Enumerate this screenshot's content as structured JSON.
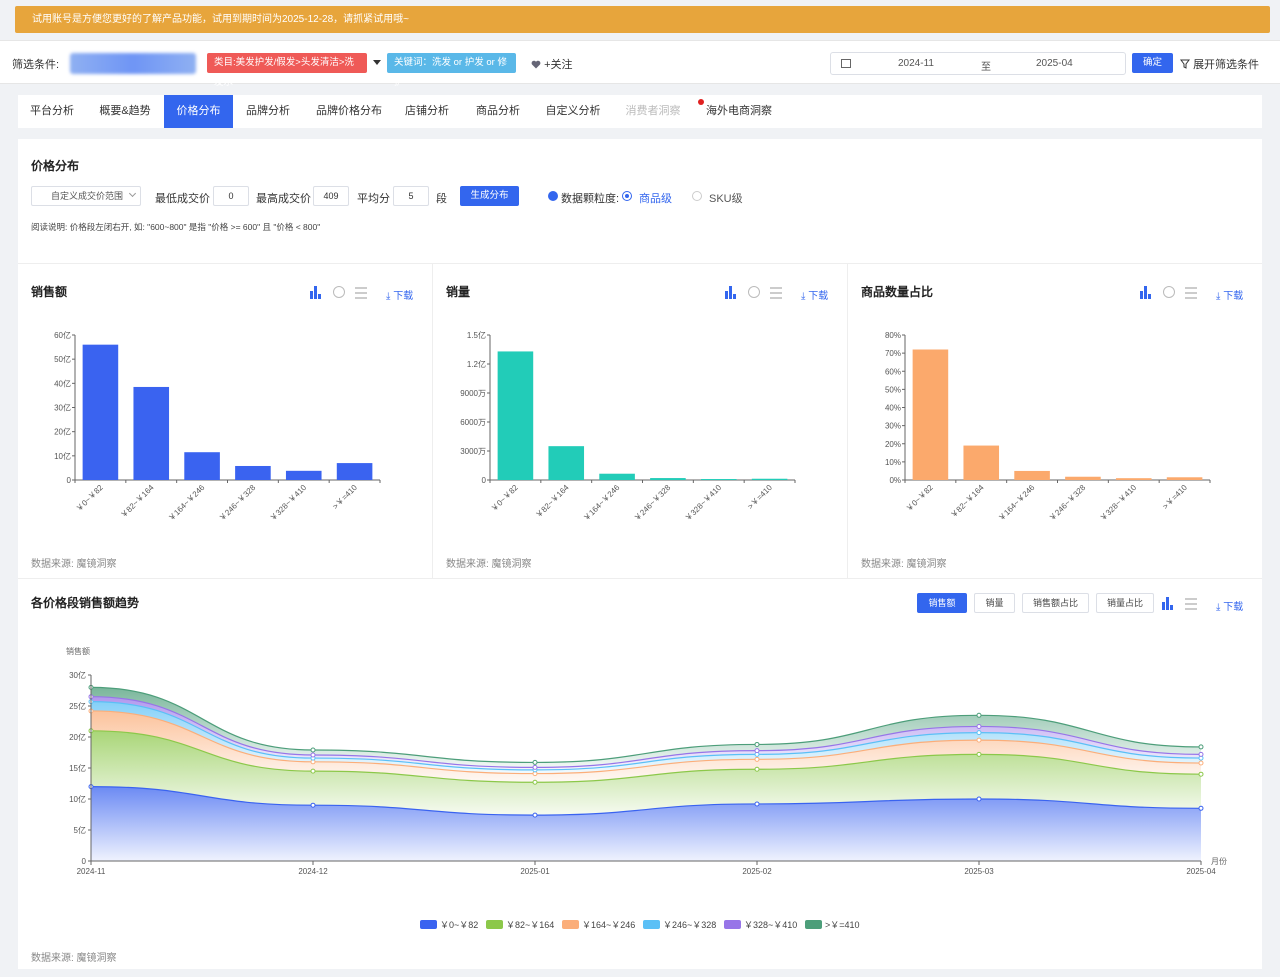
{
  "banner": {
    "text": "试用账号是方便您更好的了解产品功能，试用到期时间为2025-12-28，请抓紧试用哦~"
  },
  "filter": {
    "label": "筛选条件:",
    "category_tag": "类目:美发护发/假发>头发清洁>洗发水",
    "keyword_tag": "关键词：洗发 or 护发 or 修护",
    "follow_label": "+关注",
    "date_start": "2024-11",
    "date_to": "至",
    "date_end": "2025-04",
    "confirm_label": "确定",
    "expand_label": "展开筛选条件"
  },
  "tabs": [
    {
      "label": "平台分析",
      "state": "normal"
    },
    {
      "label": "概要&趋势",
      "state": "normal"
    },
    {
      "label": "价格分布",
      "state": "active"
    },
    {
      "label": "品牌分析",
      "state": "normal"
    },
    {
      "label": "品牌价格分布",
      "state": "normal"
    },
    {
      "label": "店铺分析",
      "state": "normal"
    },
    {
      "label": "商品分析",
      "state": "normal"
    },
    {
      "label": "自定义分析",
      "state": "normal"
    },
    {
      "label": "消费者洞察",
      "state": "disabled"
    },
    {
      "label": "海外电商洞察",
      "state": "normal"
    }
  ],
  "price_dist": {
    "title": "价格分布",
    "range_select": "自定义成交价范围",
    "min_label": "最低成交价",
    "min_value": "0",
    "max_label": "最高成交价",
    "max_value": "409",
    "split_label": "平均分",
    "split_value": "5",
    "split_unit": "段",
    "generate_label": "生成分布",
    "granularity_label": "数据颗粒度:",
    "option_product": "商品级",
    "option_sku": "SKU级",
    "note": "阅读说明: 价格段左闭右开, 如: \"600~800\" 是指 \"价格 >= 600\" 且 \"价格 < 800\""
  },
  "common": {
    "download_label": "下载",
    "source_label": "数据来源: 魔镜洞察"
  },
  "colors": {
    "primary": "#3366ee",
    "banner": "#e7a53c",
    "tag_red": "#ef5a57",
    "tag_blue": "#5ab8e8"
  },
  "chart_data": [
    {
      "type": "bar",
      "title": "销售额",
      "categories": [
        "￥0~￥82",
        "￥82~￥164",
        "￥164~￥246",
        "￥246~￥328",
        "￥328~￥410",
        ">￥=410"
      ],
      "values": [
        56,
        38.5,
        11.5,
        5.8,
        3.8,
        7
      ],
      "ylim": [
        0,
        60
      ],
      "yticks": [
        "0",
        "10亿",
        "20亿",
        "30亿",
        "40亿",
        "50亿",
        "60亿"
      ],
      "color": "#3a63f0"
    },
    {
      "type": "bar",
      "title": "销量",
      "categories": [
        "￥0~￥82",
        "￥82~￥164",
        "￥164~￥246",
        "￥246~￥328",
        "￥328~￥410",
        ">￥=410"
      ],
      "values": [
        13300,
        3500,
        650,
        200,
        100,
        130
      ],
      "ylim": [
        0,
        15000
      ],
      "yticks": [
        "0",
        "3000万",
        "6000万",
        "9000万",
        "1.2亿",
        "1.5亿"
      ],
      "color": "#22ccb8"
    },
    {
      "type": "bar",
      "title": "商品数量占比",
      "categories": [
        "￥0~￥82",
        "￥82~￥164",
        "￥164~￥246",
        "￥246~￥328",
        "￥328~￥410",
        ">￥=410"
      ],
      "values": [
        72,
        19,
        5,
        1.8,
        1,
        1.5
      ],
      "ylim": [
        0,
        80
      ],
      "yticks": [
        "0%",
        "10%",
        "20%",
        "30%",
        "40%",
        "50%",
        "60%",
        "70%",
        "80%"
      ],
      "color": "#fba96c"
    },
    {
      "type": "area",
      "title": "各价格段销售额趋势",
      "ylabel": "销售额",
      "xlabel": "月份",
      "x": [
        "2024-11",
        "2024-12",
        "2025-01",
        "2025-02",
        "2025-03",
        "2025-04"
      ],
      "ylim": [
        0,
        30
      ],
      "yticks": [
        "0",
        "5亿",
        "10亿",
        "15亿",
        "20亿",
        "25亿",
        "30亿"
      ],
      "stacked": true,
      "series": [
        {
          "name": "￥0~￥82",
          "values": [
            12,
            9,
            7.4,
            9.2,
            10,
            8.5
          ],
          "color": "#3a63f0"
        },
        {
          "name": "￥82~￥164",
          "values": [
            9,
            5.5,
            5.3,
            5.6,
            7.2,
            5.5
          ],
          "color": "#8cc84a"
        },
        {
          "name": "￥164~￥246",
          "values": [
            3.2,
            1.5,
            1.4,
            1.6,
            2.3,
            1.8
          ],
          "color": "#fbae7a"
        },
        {
          "name": "￥246~￥328",
          "values": [
            1.5,
            0.6,
            0.6,
            0.8,
            1.2,
            0.8
          ],
          "color": "#5bc0f6"
        },
        {
          "name": "￥328~￥410",
          "values": [
            0.8,
            0.5,
            0.4,
            0.6,
            1.0,
            0.6
          ],
          "color": "#9775e8"
        },
        {
          "name": ">￥=410",
          "values": [
            1.5,
            0.8,
            0.8,
            1.0,
            1.8,
            1.2
          ],
          "color": "#4d9e7a"
        }
      ]
    }
  ],
  "trend": {
    "switch_buttons": [
      "销售额",
      "销量",
      "销售额占比",
      "销量占比"
    ],
    "active_switch": 0
  }
}
